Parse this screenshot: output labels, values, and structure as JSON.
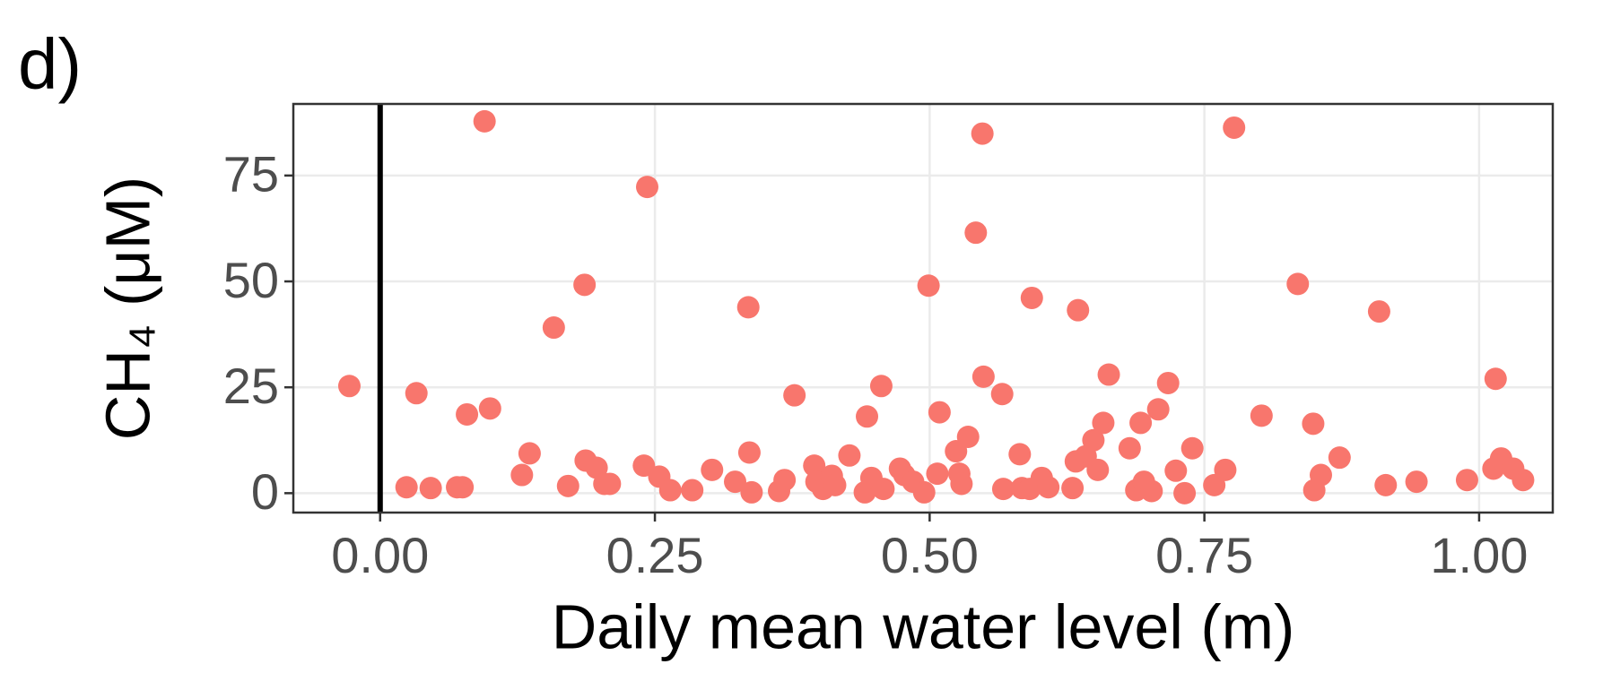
{
  "chart_data": {
    "type": "scatter",
    "panel_label": "d)",
    "x_label": "Daily mean water level (m)",
    "y_label": "CH₄ (μM)",
    "color": "#f8766d",
    "grid": true,
    "vline": 0,
    "xlim": [
      -0.079,
      1.067
    ],
    "ylim": [
      -4.58,
      91.9
    ],
    "xticks": [
      {
        "value": 0,
        "label": "0.00"
      },
      {
        "value": 0.25,
        "label": "0.25"
      },
      {
        "value": 0.5,
        "label": "0.50"
      },
      {
        "value": 0.75,
        "label": "0.75"
      },
      {
        "value": 1,
        "label": "1.00"
      }
    ],
    "yticks": [
      0,
      25,
      50,
      75
    ],
    "x": [
      -0.028,
      0.024,
      0.033,
      0.046,
      0.07,
      0.075,
      0.079,
      0.095,
      0.1,
      0.129,
      0.136,
      0.158,
      0.171,
      0.186,
      0.187,
      0.197,
      0.204,
      0.209,
      0.24,
      0.243,
      0.254,
      0.264,
      0.284,
      0.302,
      0.323,
      0.335,
      0.336,
      0.338,
      0.363,
      0.368,
      0.377,
      0.395,
      0.397,
      0.403,
      0.411,
      0.414,
      0.427,
      0.441,
      0.443,
      0.447,
      0.456,
      0.458,
      0.473,
      0.477,
      0.485,
      0.495,
      0.499,
      0.507,
      0.509,
      0.524,
      0.527,
      0.529,
      0.535,
      0.542,
      0.548,
      0.549,
      0.566,
      0.567,
      0.582,
      0.584,
      0.591,
      0.593,
      0.602,
      0.608,
      0.63,
      0.633,
      0.635,
      0.642,
      0.649,
      0.653,
      0.658,
      0.663,
      0.682,
      0.688,
      0.692,
      0.695,
      0.702,
      0.708,
      0.717,
      0.724,
      0.732,
      0.739,
      0.759,
      0.769,
      0.777,
      0.802,
      0.835,
      0.849,
      0.85,
      0.856,
      0.873,
      0.909,
      0.915,
      0.943,
      0.989,
      1.013,
      1.015,
      1.02,
      1.031,
      1.04
    ],
    "values": [
      25.3,
      1.4,
      23.6,
      1.2,
      1.4,
      1.4,
      18.6,
      87.8,
      20.0,
      4.3,
      9.4,
      39.1,
      1.7,
      49.2,
      7.7,
      6.0,
      2.2,
      2.2,
      6.5,
      72.3,
      3.9,
      0.7,
      0.7,
      5.5,
      2.7,
      43.9,
      9.6,
      0.2,
      0.5,
      3.1,
      23.1,
      6.5,
      2.7,
      1.0,
      4.1,
      1.9,
      8.9,
      0.2,
      18.1,
      3.6,
      25.3,
      1.0,
      5.8,
      4.3,
      2.7,
      0.2,
      49.0,
      4.6,
      19.1,
      9.9,
      4.6,
      2.2,
      13.3,
      61.5,
      84.9,
      27.5,
      23.4,
      1.0,
      9.2,
      1.2,
      1.0,
      46.1,
      3.6,
      1.4,
      1.2,
      7.5,
      43.2,
      8.7,
      12.5,
      5.5,
      16.6,
      28.0,
      10.6,
      0.7,
      16.6,
      2.7,
      0.5,
      19.8,
      26.0,
      5.3,
      0.0,
      10.6,
      1.9,
      5.5,
      86.3,
      18.3,
      49.4,
      16.4,
      0.7,
      4.3,
      8.4,
      42.9,
      1.9,
      2.7,
      3.1,
      5.8,
      27.0,
      8.2,
      5.8,
      3.1
    ]
  }
}
